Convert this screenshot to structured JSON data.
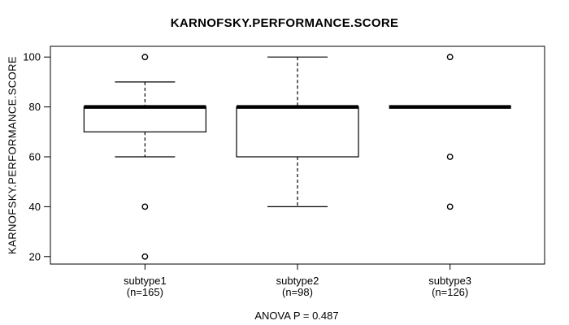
{
  "colors": {
    "line": "#000000",
    "background": "#ffffff",
    "box_fill": "#ffffff"
  },
  "chart_data": {
    "type": "boxplot",
    "title": "KARNOFSKY.PERFORMANCE.SCORE",
    "ylabel": "KARNOFSKY.PERFORMANCE.SCORE",
    "xlabel": "",
    "annotation": "ANOVA P = 0.487",
    "y_ticks": [
      20,
      40,
      60,
      80,
      100
    ],
    "ylim": [
      17,
      104.3
    ],
    "grid": false,
    "legend": "none",
    "groups": [
      {
        "label": "subtype1",
        "sublabel": "(n=165)",
        "median": 80,
        "q1": 70,
        "q3": 80,
        "whisker_low": 60,
        "whisker_high": 90,
        "outliers": [
          100,
          40,
          20
        ]
      },
      {
        "label": "subtype2",
        "sublabel": "(n=98)",
        "median": 80,
        "q1": 60,
        "q3": 80,
        "whisker_low": 40,
        "whisker_high": 100,
        "outliers": []
      },
      {
        "label": "subtype3",
        "sublabel": "(n=126)",
        "median": 80,
        "q1": 80,
        "q3": 80,
        "whisker_low": 80,
        "whisker_high": 80,
        "outliers": [
          100,
          60,
          40
        ]
      }
    ]
  }
}
